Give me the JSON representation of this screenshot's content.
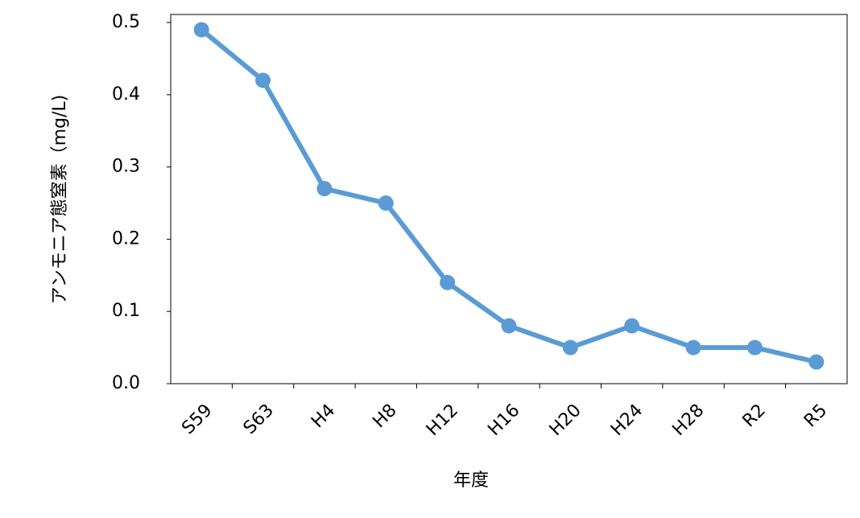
{
  "chart_data": {
    "type": "line",
    "y_label": "アンモニア態窒素（mg/L)",
    "x_label": "年度",
    "categories": [
      "S59",
      "S63",
      "H4",
      "H8",
      "H12",
      "H16",
      "H20",
      "H24",
      "H28",
      "R2",
      "R5"
    ],
    "series": [
      {
        "name": "アンモニア態窒素",
        "color": "#5b9bd5",
        "values": [
          0.49,
          0.42,
          0.27,
          0.25,
          0.14,
          0.08,
          0.05,
          0.08,
          0.05,
          0.05,
          0.03
        ]
      }
    ],
    "ylim": [
      0,
      0.5
    ],
    "yticks": [
      {
        "value": 0,
        "label": "0.0"
      },
      0.1,
      0.2,
      0.3,
      0.4,
      0.5
    ],
    "grid": false
  }
}
